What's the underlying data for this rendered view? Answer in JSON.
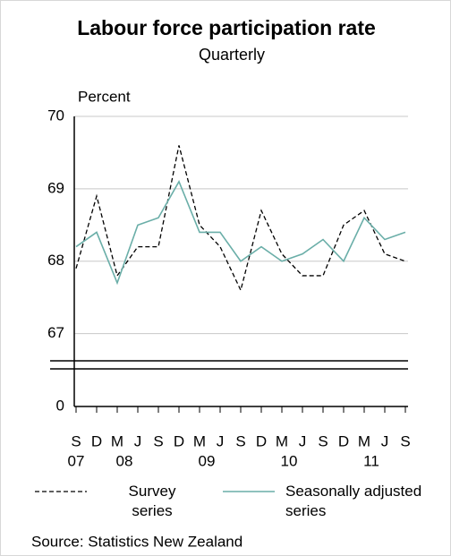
{
  "chart_data": {
    "type": "line",
    "title": "Labour force participation rate",
    "subtitle": "Quarterly",
    "y_label": "Percent",
    "source": "Source: Statistics New Zealand",
    "categories": [
      "S",
      "D",
      "M",
      "J",
      "S",
      "D",
      "M",
      "J",
      "S",
      "D",
      "M",
      "J",
      "S",
      "D",
      "M",
      "J",
      "S"
    ],
    "years": [
      "07",
      null,
      "08",
      null,
      null,
      null,
      "09",
      null,
      null,
      null,
      "10",
      null,
      null,
      null,
      "11",
      null,
      null
    ],
    "series": [
      {
        "name": "Survey series",
        "color": "#000000",
        "dashed": true,
        "values": [
          67.9,
          68.9,
          67.8,
          68.2,
          68.2,
          69.6,
          68.5,
          68.2,
          67.6,
          68.7,
          68.1,
          67.8,
          67.8,
          68.5,
          68.7,
          68.1,
          68.0
        ]
      },
      {
        "name": "Seasonally adjusted series",
        "color": "#6aaea8",
        "dashed": false,
        "values": [
          68.2,
          68.4,
          67.7,
          68.5,
          68.6,
          69.1,
          68.4,
          68.4,
          68.0,
          68.2,
          68.0,
          68.1,
          68.3,
          68.0,
          68.6,
          68.3,
          68.4
        ]
      }
    ],
    "ylim": [
      66.6,
      70
    ],
    "yticks": [
      0,
      67,
      68,
      69,
      70
    ],
    "axis_break": true,
    "grid": true
  }
}
